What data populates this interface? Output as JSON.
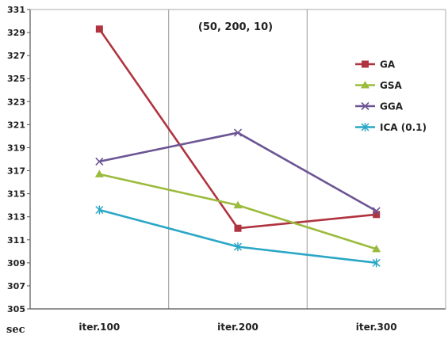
{
  "chart_data": {
    "type": "line",
    "title": "(50, 200, 10)",
    "ylabel": "sec",
    "xlabel": "",
    "categories": [
      "iter.100",
      "iter.200",
      "iter.300"
    ],
    "ylim": [
      305,
      331
    ],
    "yticks": [
      305,
      307,
      309,
      311,
      313,
      315,
      317,
      319,
      321,
      323,
      325,
      327,
      329,
      331
    ],
    "grid": "vertical",
    "legend_position": "right",
    "series": [
      {
        "name": "GA",
        "values": [
          329.3,
          312.0,
          313.2
        ],
        "color": "#b0343f",
        "marker": "square"
      },
      {
        "name": "GSA",
        "values": [
          316.7,
          314.0,
          310.2
        ],
        "color": "#9bbb3c",
        "marker": "triangle"
      },
      {
        "name": "GGA",
        "values": [
          317.8,
          320.3,
          313.5
        ],
        "color": "#6b5594",
        "marker": "x"
      },
      {
        "name": "ICA (0.1)",
        "values": [
          313.6,
          310.4,
          309.0
        ],
        "color": "#2aa7c6",
        "marker": "star"
      }
    ]
  }
}
